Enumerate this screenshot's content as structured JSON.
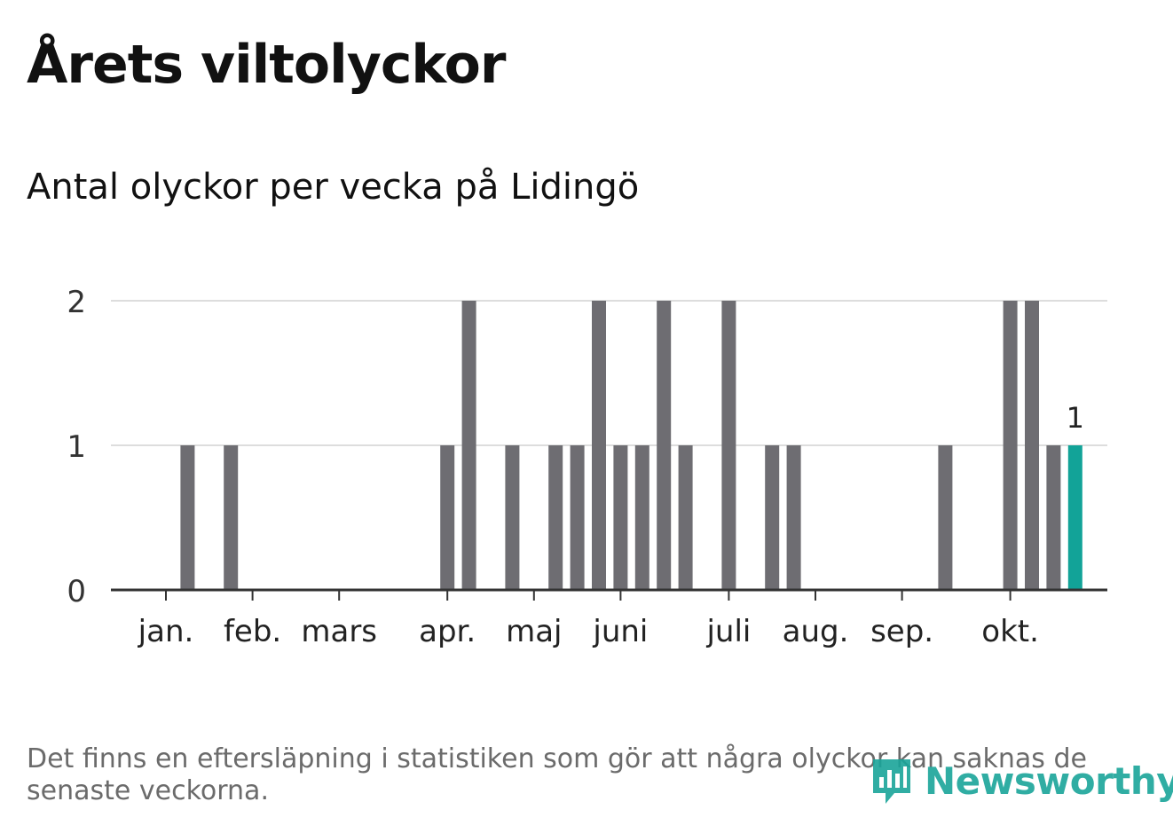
{
  "header": {
    "title": "Årets viltolyckor",
    "subtitle": "Antal olyckor per vecka på Lidingö"
  },
  "chart_data": {
    "type": "bar",
    "yticks": [
      0,
      1,
      2
    ],
    "ylim": [
      0,
      2
    ],
    "grid": true,
    "month_labels": [
      "jan.",
      "feb.",
      "mars",
      "apr.",
      "maj",
      "juni",
      "juli",
      "aug.",
      "sep.",
      "okt."
    ],
    "month_tick_weeks": [
      1,
      5,
      9,
      14,
      18,
      22,
      27,
      31,
      35,
      40
    ],
    "weeks": [
      1,
      2,
      3,
      4,
      5,
      6,
      7,
      8,
      9,
      10,
      11,
      12,
      13,
      14,
      15,
      16,
      17,
      18,
      19,
      20,
      21,
      22,
      23,
      24,
      25,
      26,
      27,
      28,
      29,
      30,
      31,
      32,
      33,
      34,
      35,
      36,
      37,
      38,
      39,
      40,
      41,
      42
    ],
    "values": [
      0,
      1,
      0,
      1,
      0,
      0,
      0,
      0,
      0,
      0,
      0,
      0,
      0,
      1,
      2,
      0,
      1,
      0,
      1,
      1,
      2,
      1,
      1,
      2,
      1,
      0,
      2,
      0,
      1,
      1,
      0,
      0,
      0,
      0,
      0,
      0,
      1,
      0,
      0,
      2,
      2,
      1
    ],
    "current": {
      "week": 43,
      "value": 1,
      "label": "1"
    },
    "colors": {
      "bar": "#6e6d72",
      "current": "#12a398",
      "grid": "#dddddd",
      "axis": "#333333"
    }
  },
  "footer": {
    "note": "Det finns en eftersläpning i statistiken som gör att några olyckor kan saknas de senaste veckorna.",
    "logo_text": "Newsworthy"
  }
}
